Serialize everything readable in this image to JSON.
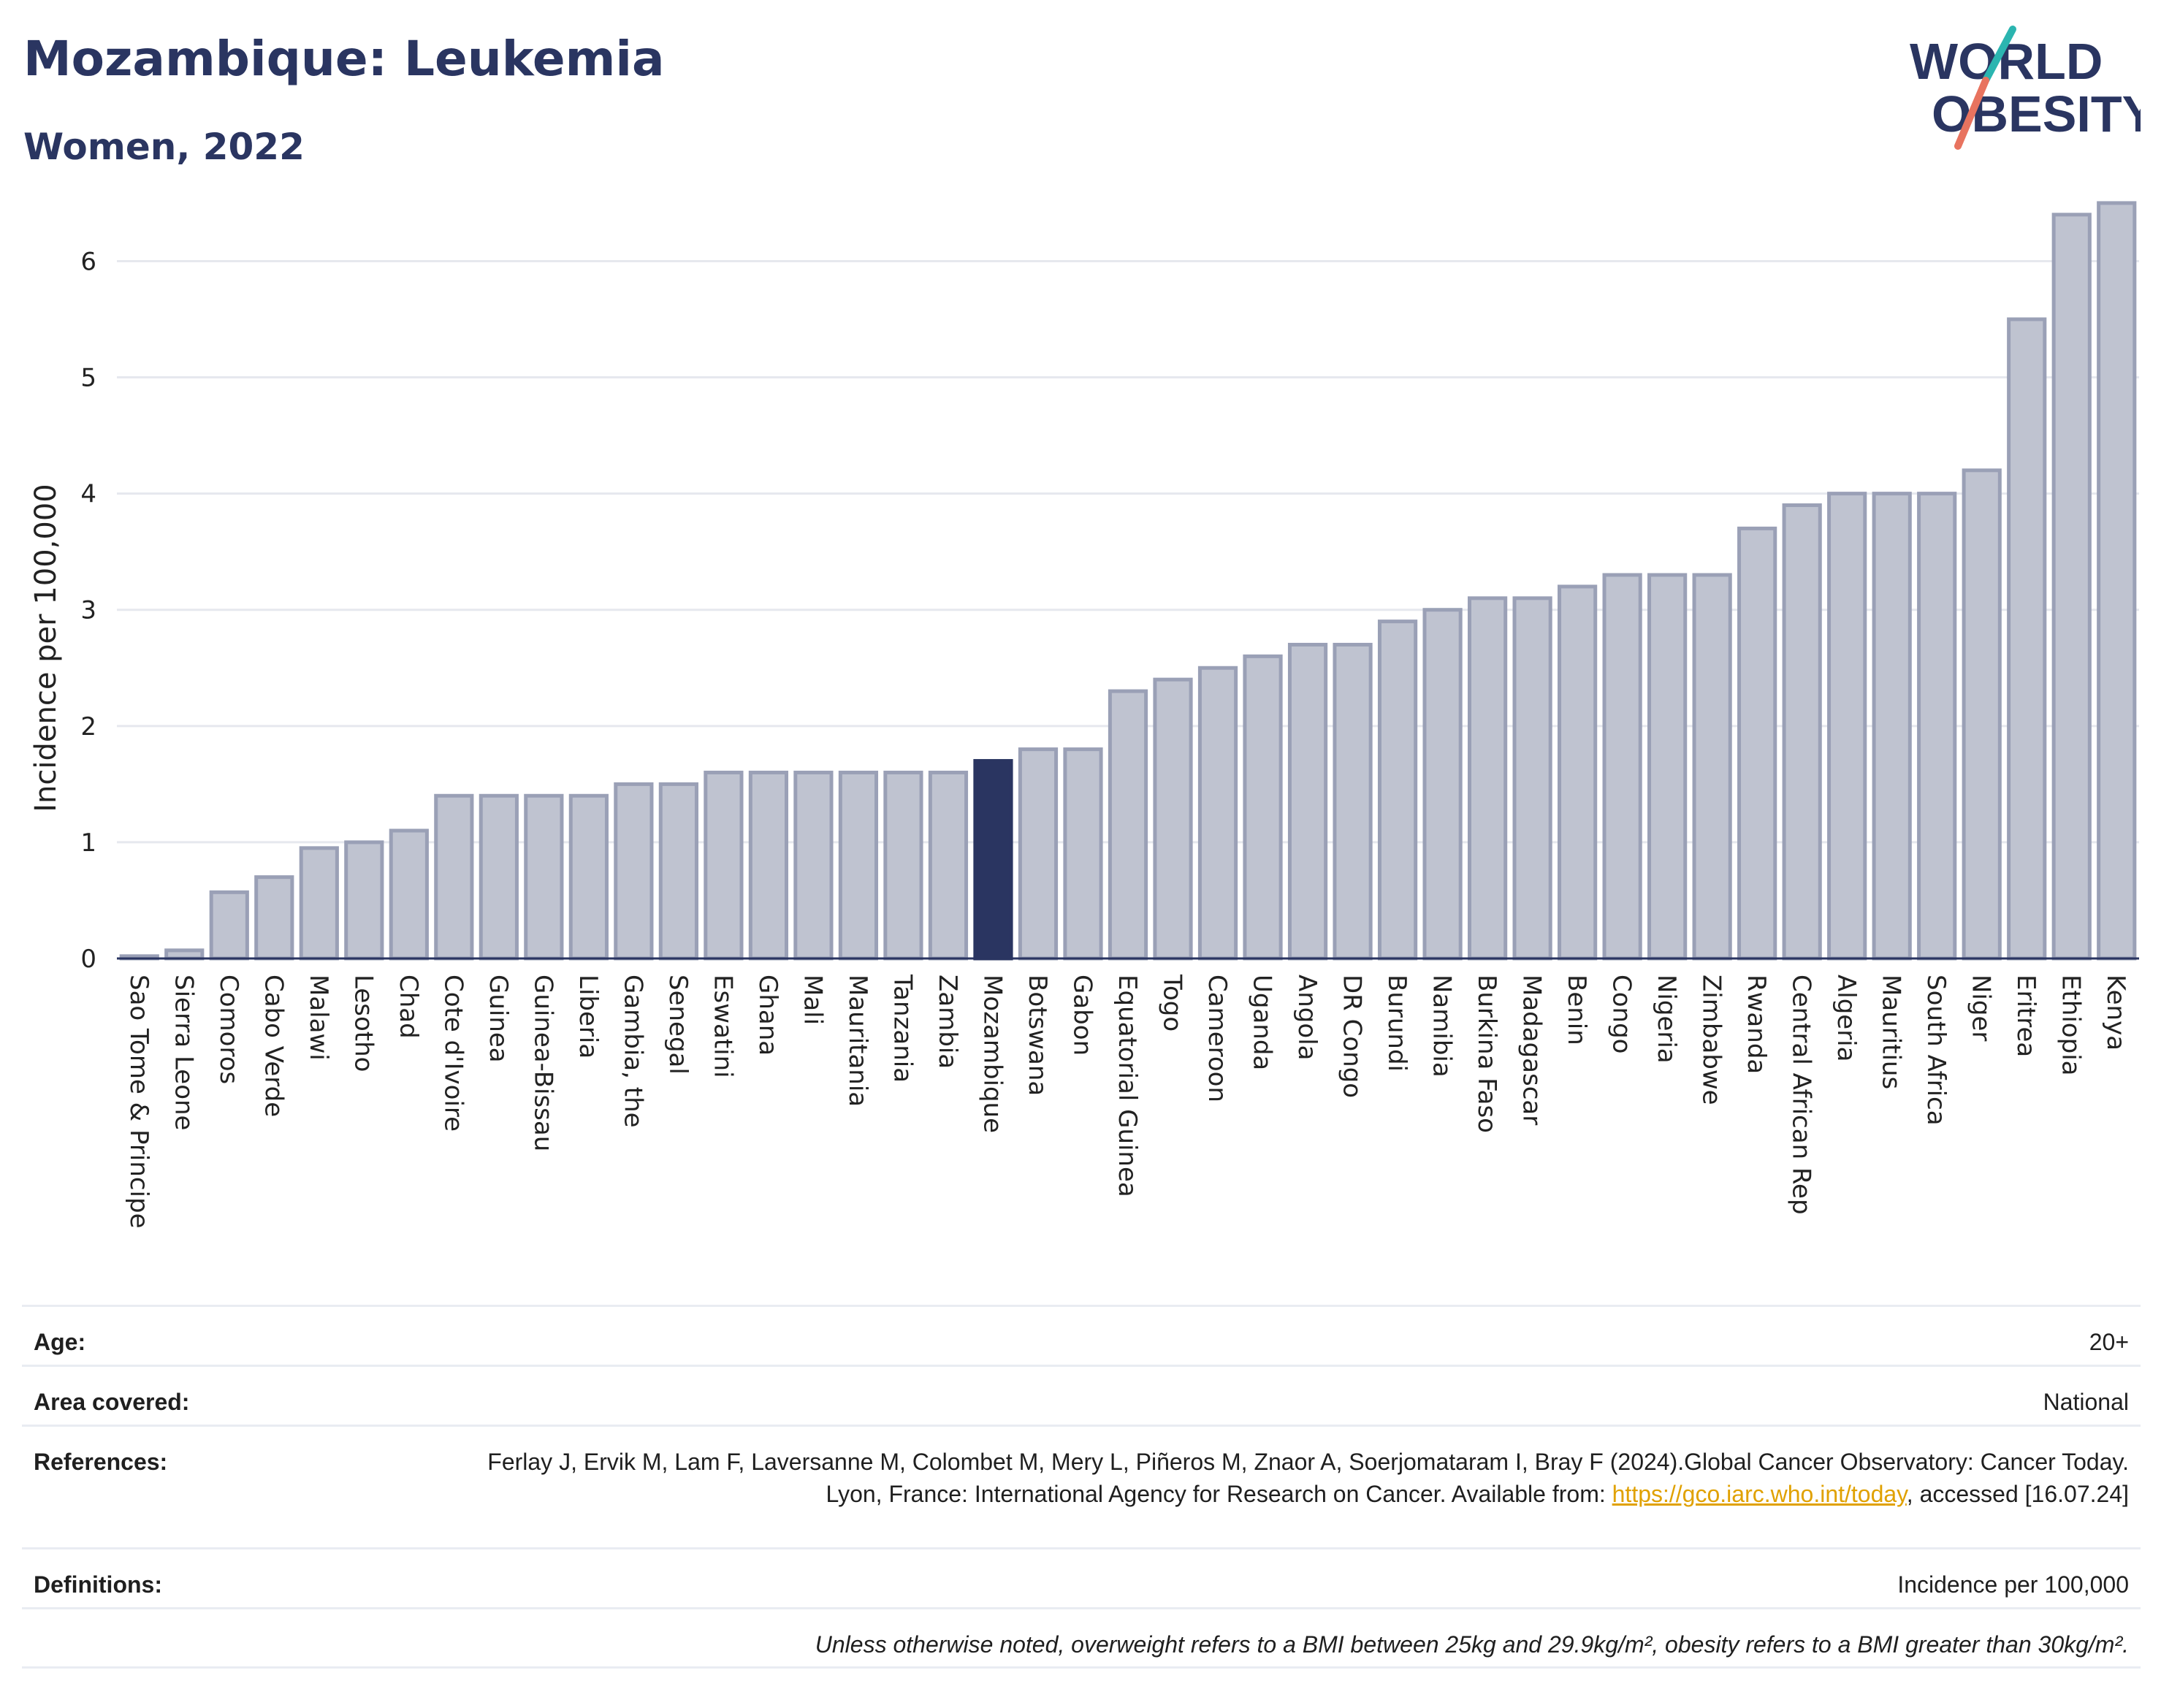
{
  "header": {
    "title": "Mozambique: Leukemia",
    "subtitle": "Women, 2022",
    "logo_line1": "WORLD",
    "logo_line2": "OBESITY"
  },
  "colors": {
    "title": "#2a3561",
    "bar": "#bfc3d0",
    "bar_border": "#9aa0b6",
    "highlight": "#2a3561",
    "logo_teal": "#2bb5b0",
    "logo_coral": "#e8735f"
  },
  "chart_data": {
    "type": "bar",
    "ylabel": "Incidence per 100,000",
    "ylim": [
      0,
      6.6
    ],
    "yticks": [
      0,
      1,
      2,
      3,
      4,
      5,
      6
    ],
    "grid": true,
    "highlight": "Mozambique",
    "categories": [
      "Sao Tome & Principe",
      "Sierra Leone",
      "Comoros",
      "Cabo Verde",
      "Malawi",
      "Lesotho",
      "Chad",
      "Cote d'Ivoire",
      "Guinea",
      "Guinea-Bissau",
      "Liberia",
      "Gambia, the",
      "Senegal",
      "Eswatini",
      "Ghana",
      "Mali",
      "Mauritania",
      "Tanzania",
      "Zambia",
      "Mozambique",
      "Botswana",
      "Gabon",
      "Equatorial Guinea",
      "Togo",
      "Cameroon",
      "Uganda",
      "Angola",
      "DR Congo",
      "Burundi",
      "Namibia",
      "Burkina Faso",
      "Madagascar",
      "Benin",
      "Congo",
      "Nigeria",
      "Zimbabwe",
      "Rwanda",
      "Central African Rep",
      "Algeria",
      "Mauritius",
      "South Africa",
      "Niger",
      "Eritrea",
      "Ethiopia",
      "Kenya"
    ],
    "values": [
      0.02,
      0.07,
      0.57,
      0.7,
      0.95,
      1.0,
      1.1,
      1.4,
      1.4,
      1.4,
      1.4,
      1.5,
      1.5,
      1.6,
      1.6,
      1.6,
      1.6,
      1.6,
      1.6,
      1.7,
      1.8,
      1.8,
      2.3,
      2.4,
      2.5,
      2.6,
      2.7,
      2.7,
      2.9,
      3.0,
      3.1,
      3.1,
      3.2,
      3.3,
      3.3,
      3.3,
      3.7,
      3.9,
      4.0,
      4.0,
      4.0,
      4.2,
      5.5,
      6.4,
      6.5
    ]
  },
  "meta": {
    "age_label": "Age:",
    "age_value": "20+",
    "area_label": "Area covered:",
    "area_value": "National",
    "ref_label": "References:",
    "ref_text_1": "Ferlay J, Ervik M, Lam F, Laversanne M, Colombet M, Mery L, Piñeros M, Znaor A, Soerjomataram I, Bray F (2024).Global Cancer Observatory: Cancer Today. Lyon, France: International Agency for Research on Cancer. Available from: ",
    "ref_link": "https://gco.iarc.who.int/today",
    "ref_text_2": ", accessed [16.07.24]",
    "def_label": "Definitions:",
    "def_value": "Incidence per 100,000",
    "note": "Unless otherwise noted, overweight refers to a BMI between 25kg and 29.9kg/m², obesity refers to a BMI greater than 30kg/m²."
  }
}
